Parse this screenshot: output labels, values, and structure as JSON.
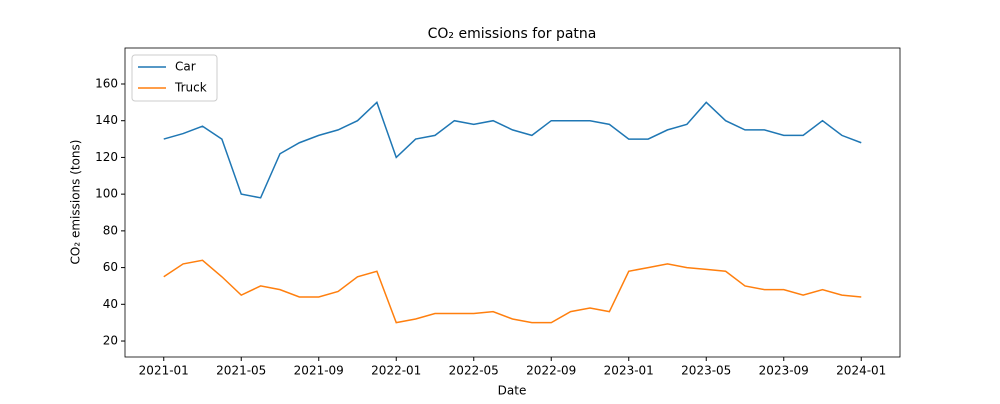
{
  "chart_data": {
    "type": "line",
    "title": "CO₂ emissions for patna",
    "x_label": "Date",
    "y_label": "CO₂ emissions (tons)",
    "x": [
      "2021-01",
      "2021-02",
      "2021-03",
      "2021-04",
      "2021-05",
      "2021-06",
      "2021-07",
      "2021-08",
      "2021-09",
      "2021-10",
      "2021-11",
      "2021-12",
      "2022-01",
      "2022-02",
      "2022-03",
      "2022-04",
      "2022-05",
      "2022-06",
      "2022-07",
      "2022-08",
      "2022-09",
      "2022-10",
      "2022-11",
      "2022-12",
      "2023-01",
      "2023-02",
      "2023-03",
      "2023-04",
      "2023-05",
      "2023-06",
      "2023-07",
      "2023-08",
      "2023-09",
      "2023-10",
      "2023-11",
      "2023-12",
      "2024-01"
    ],
    "series": [
      {
        "name": "Car",
        "color": "#1f77b4",
        "values": [
          130,
          133,
          137,
          130,
          100,
          98,
          122,
          128,
          132,
          135,
          140,
          150,
          120,
          130,
          132,
          140,
          138,
          140,
          135,
          132,
          140,
          140,
          140,
          138,
          130,
          130,
          135,
          138,
          150,
          140,
          135,
          135,
          132,
          132,
          140,
          132,
          128
        ]
      },
      {
        "name": "Truck",
        "color": "#ff7f0e",
        "values": [
          55,
          62,
          64,
          55,
          45,
          50,
          48,
          44,
          44,
          47,
          55,
          58,
          30,
          32,
          35,
          35,
          35,
          36,
          32,
          30,
          30,
          36,
          38,
          36,
          58,
          60,
          62,
          60,
          59,
          58,
          50,
          48,
          48,
          45,
          48,
          45,
          44
        ]
      }
    ],
    "xlim": [
      "2020-11",
      "2024-03"
    ],
    "xticks": [
      "2021-01",
      "2021-05",
      "2021-09",
      "2022-01",
      "2022-05",
      "2022-09",
      "2023-01",
      "2023-05",
      "2023-09",
      "2024-01"
    ],
    "ylim": [
      11.3,
      179.6
    ],
    "yticks": [
      20,
      40,
      60,
      80,
      100,
      120,
      140,
      160
    ],
    "legend": "upper left"
  }
}
